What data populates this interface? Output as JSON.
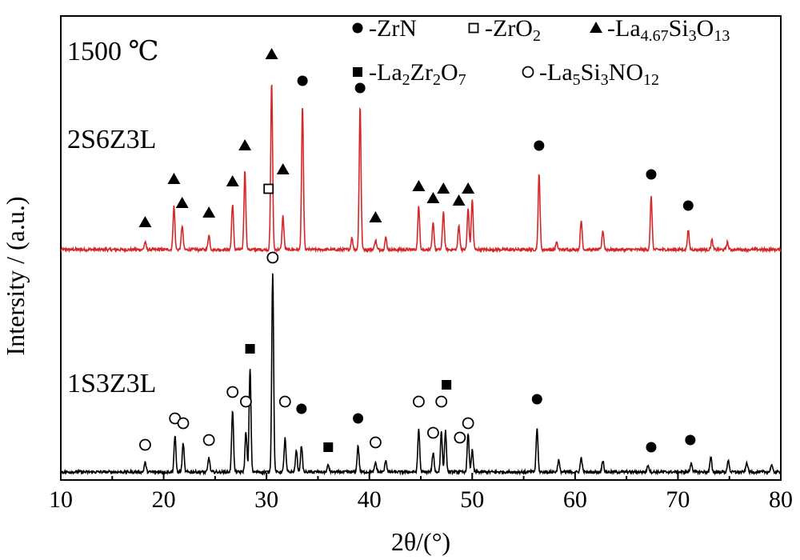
{
  "chart_data": {
    "type": "line",
    "temperature_label": "1500 ℃",
    "xlabel": "2θ/(°)",
    "ylabel": "Intersity / (a.u.)",
    "xlim": [
      10,
      80
    ],
    "x_ticks": [
      "10",
      "20",
      "30",
      "40",
      "50",
      "60",
      "70",
      "80"
    ],
    "legend": [
      {
        "marker": "filled-circle",
        "label": "-ZrN"
      },
      {
        "marker": "open-square",
        "label": "-ZrO",
        "sub": "2"
      },
      {
        "marker": "filled-triangle",
        "label": "-La",
        "sub": "4.67",
        "label2": "Si",
        "sub2": "3",
        "label3": "O",
        "sub3": "13"
      },
      {
        "marker": "filled-square",
        "label": "-La",
        "sub": "2",
        "label2": "Zr",
        "sub2": "2",
        "label3": "O",
        "sub3": "7"
      },
      {
        "marker": "open-circle",
        "label": "-La",
        "sub": "5",
        "label2": "Si",
        "sub2": "3",
        "label3": "NO",
        "sub3": "12"
      }
    ],
    "series": [
      {
        "name": "2S6Z3L",
        "color": "#d62728",
        "baseline": 0.0,
        "peaks": [
          [
            18.2,
            0.03
          ],
          [
            21.0,
            0.18
          ],
          [
            21.8,
            0.1
          ],
          [
            24.4,
            0.06
          ],
          [
            26.7,
            0.19
          ],
          [
            27.9,
            0.33
          ],
          [
            30.5,
            0.7
          ],
          [
            31.6,
            0.14
          ],
          [
            33.5,
            0.6
          ],
          [
            38.3,
            0.05
          ],
          [
            39.1,
            0.6
          ],
          [
            40.6,
            0.04
          ],
          [
            41.6,
            0.05
          ],
          [
            44.8,
            0.18
          ],
          [
            46.2,
            0.11
          ],
          [
            47.2,
            0.16
          ],
          [
            48.7,
            0.1
          ],
          [
            49.6,
            0.17
          ],
          [
            50.0,
            0.21
          ],
          [
            56.5,
            0.32
          ],
          [
            58.2,
            0.03
          ],
          [
            60.6,
            0.12
          ],
          [
            62.7,
            0.08
          ],
          [
            67.4,
            0.22
          ],
          [
            71.0,
            0.08
          ],
          [
            73.3,
            0.04
          ],
          [
            74.8,
            0.03
          ]
        ],
        "markers": [
          {
            "x": 18.2,
            "y": 0.08,
            "m": "filled-triangle"
          },
          {
            "x": 21.0,
            "y": 0.26,
            "m": "filled-triangle"
          },
          {
            "x": 21.8,
            "y": 0.16,
            "m": "filled-triangle"
          },
          {
            "x": 24.4,
            "y": 0.12,
            "m": "filled-triangle"
          },
          {
            "x": 26.7,
            "y": 0.25,
            "m": "filled-triangle"
          },
          {
            "x": 27.9,
            "y": 0.4,
            "m": "filled-triangle"
          },
          {
            "x": 30.2,
            "y": 0.22,
            "m": "open-square"
          },
          {
            "x": 30.5,
            "y": 0.78,
            "m": "filled-triangle"
          },
          {
            "x": 31.6,
            "y": 0.3,
            "m": "filled-triangle"
          },
          {
            "x": 33.5,
            "y": 0.67,
            "m": "filled-circle"
          },
          {
            "x": 39.1,
            "y": 0.64,
            "m": "filled-circle"
          },
          {
            "x": 40.6,
            "y": 0.1,
            "m": "filled-triangle"
          },
          {
            "x": 44.8,
            "y": 0.23,
            "m": "filled-triangle"
          },
          {
            "x": 46.2,
            "y": 0.18,
            "m": "filled-triangle"
          },
          {
            "x": 47.2,
            "y": 0.22,
            "m": "filled-triangle"
          },
          {
            "x": 48.7,
            "y": 0.17,
            "m": "filled-triangle"
          },
          {
            "x": 49.6,
            "y": 0.22,
            "m": "filled-triangle"
          },
          {
            "x": 56.5,
            "y": 0.4,
            "m": "filled-circle"
          },
          {
            "x": 67.4,
            "y": 0.28,
            "m": "filled-circle"
          },
          {
            "x": 71.0,
            "y": 0.15,
            "m": "filled-circle"
          }
        ]
      },
      {
        "name": "1S3Z3L",
        "color": "#000000",
        "baseline": 0.0,
        "peaks": [
          [
            18.2,
            0.04
          ],
          [
            21.1,
            0.15
          ],
          [
            21.9,
            0.12
          ],
          [
            24.4,
            0.06
          ],
          [
            26.7,
            0.26
          ],
          [
            28.0,
            0.17
          ],
          [
            28.4,
            0.43
          ],
          [
            30.6,
            0.83
          ],
          [
            31.8,
            0.14
          ],
          [
            32.9,
            0.09
          ],
          [
            33.4,
            0.11
          ],
          [
            36.0,
            0.03
          ],
          [
            38.9,
            0.11
          ],
          [
            40.6,
            0.04
          ],
          [
            41.6,
            0.05
          ],
          [
            44.8,
            0.18
          ],
          [
            46.2,
            0.08
          ],
          [
            47.0,
            0.17
          ],
          [
            47.4,
            0.17
          ],
          [
            49.6,
            0.16
          ],
          [
            50.0,
            0.09
          ],
          [
            56.3,
            0.18
          ],
          [
            58.4,
            0.05
          ],
          [
            60.6,
            0.06
          ],
          [
            62.7,
            0.05
          ],
          [
            67.1,
            0.03
          ],
          [
            71.3,
            0.04
          ],
          [
            73.2,
            0.06
          ],
          [
            74.9,
            0.05
          ],
          [
            76.7,
            0.04
          ],
          [
            79.1,
            0.03
          ]
        ],
        "markers": [
          {
            "x": 18.2,
            "y": 0.08,
            "m": "open-circle"
          },
          {
            "x": 21.1,
            "y": 0.19,
            "m": "open-circle"
          },
          {
            "x": 21.9,
            "y": 0.17,
            "m": "open-circle"
          },
          {
            "x": 24.4,
            "y": 0.1,
            "m": "open-circle"
          },
          {
            "x": 26.7,
            "y": 0.3,
            "m": "open-circle"
          },
          {
            "x": 28.0,
            "y": 0.26,
            "m": "open-circle"
          },
          {
            "x": 28.4,
            "y": 0.48,
            "m": "filled-square"
          },
          {
            "x": 30.6,
            "y": 0.86,
            "m": "open-circle"
          },
          {
            "x": 31.8,
            "y": 0.26,
            "m": "open-circle"
          },
          {
            "x": 33.4,
            "y": 0.23,
            "m": "filled-circle"
          },
          {
            "x": 36.0,
            "y": 0.07,
            "m": "filled-square"
          },
          {
            "x": 38.9,
            "y": 0.19,
            "m": "filled-circle"
          },
          {
            "x": 40.6,
            "y": 0.09,
            "m": "open-circle"
          },
          {
            "x": 44.8,
            "y": 0.26,
            "m": "open-circle"
          },
          {
            "x": 46.2,
            "y": 0.13,
            "m": "open-circle"
          },
          {
            "x": 47.0,
            "y": 0.26,
            "m": "open-circle"
          },
          {
            "x": 47.5,
            "y": 0.33,
            "m": "filled-square"
          },
          {
            "x": 48.8,
            "y": 0.11,
            "m": "open-circle"
          },
          {
            "x": 49.6,
            "y": 0.17,
            "m": "open-circle"
          },
          {
            "x": 56.3,
            "y": 0.27,
            "m": "filled-circle"
          },
          {
            "x": 67.4,
            "y": 0.07,
            "m": "filled-circle"
          },
          {
            "x": 71.2,
            "y": 0.1,
            "m": "filled-circle"
          }
        ]
      }
    ]
  }
}
